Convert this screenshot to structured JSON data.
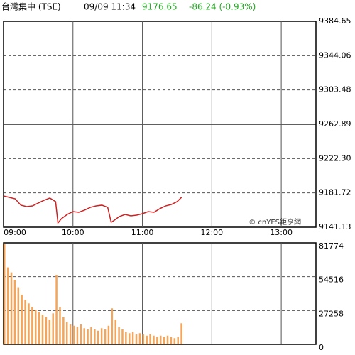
{
  "header": {
    "name": "台灣集中 (TSE)",
    "time": "09/09 11:34",
    "price": "9176.65",
    "change": "-86.24 (-0.93%)"
  },
  "chart_data": [
    {
      "type": "line",
      "watermark": "© cnYES鉅亨網",
      "color": "#cc2222",
      "prev_close": 9262.89,
      "x": [
        "09:00",
        "09:05",
        "09:10",
        "09:15",
        "09:20",
        "09:25",
        "09:30",
        "09:35",
        "09:40",
        "09:45",
        "09:47",
        "09:50",
        "09:55",
        "10:00",
        "10:05",
        "10:10",
        "10:15",
        "10:20",
        "10:25",
        "10:30",
        "10:33",
        "10:35",
        "10:40",
        "10:45",
        "10:50",
        "10:55",
        "11:00",
        "11:05",
        "11:10",
        "11:15",
        "11:20",
        "11:25",
        "11:30",
        "11:34"
      ],
      "values": [
        9178.1,
        9176.4,
        9174.7,
        9167.2,
        9165.5,
        9166.3,
        9169.7,
        9173.0,
        9175.6,
        9171.4,
        9146.2,
        9151.2,
        9156.2,
        9159.6,
        9158.8,
        9161.3,
        9164.6,
        9166.3,
        9167.2,
        9164.6,
        9147.0,
        9148.7,
        9153.7,
        9156.2,
        9154.6,
        9155.4,
        9157.1,
        9159.6,
        9158.8,
        9163.0,
        9166.3,
        9168.0,
        9171.4,
        9176.7
      ],
      "xlim": [
        "09:00",
        "13:30"
      ],
      "xticks": [
        "09:00",
        "10:00",
        "11:00",
        "12:00",
        "13:00"
      ],
      "ylim": [
        9141.13,
        9384.65
      ],
      "yticks": [
        9141.13,
        9181.72,
        {
          "value": 9222.3,
          "label": "9222.30"
        },
        9262.89,
        9303.48,
        9344.06,
        9384.65
      ]
    },
    {
      "type": "bar",
      "color": "#f5a55a",
      "x": [
        "09:00",
        "09:03",
        "09:06",
        "09:09",
        "09:12",
        "09:15",
        "09:18",
        "09:21",
        "09:24",
        "09:27",
        "09:30",
        "09:33",
        "09:36",
        "09:39",
        "09:42",
        "09:45",
        "09:48",
        "09:51",
        "09:54",
        "09:57",
        "10:00",
        "10:03",
        "10:06",
        "10:09",
        "10:12",
        "10:15",
        "10:18",
        "10:21",
        "10:24",
        "10:27",
        "10:30",
        "10:33",
        "10:36",
        "10:39",
        "10:42",
        "10:45",
        "10:48",
        "10:51",
        "10:54",
        "10:57",
        "11:00",
        "11:03",
        "11:06",
        "11:09",
        "11:12",
        "11:15",
        "11:18",
        "11:21",
        "11:24",
        "11:27",
        "11:30",
        "11:33"
      ],
      "values": [
        81000,
        62000,
        58000,
        52000,
        46000,
        40000,
        36000,
        33000,
        30000,
        28000,
        26000,
        24000,
        22000,
        20000,
        25000,
        56000,
        30000,
        22000,
        18000,
        16000,
        15000,
        14000,
        16000,
        13000,
        12000,
        14000,
        12000,
        11000,
        13000,
        12000,
        15000,
        29000,
        20000,
        14000,
        12000,
        10000,
        9000,
        10000,
        8000,
        9000,
        8000,
        7000,
        8000,
        7000,
        6000,
        7000,
        6000,
        7000,
        6000,
        5000,
        6000,
        17000
      ],
      "xlim": [
        "09:00",
        "13:30"
      ],
      "xticks": [
        "09:00",
        "10:00",
        "11:00",
        "12:00",
        "13:00"
      ],
      "ylim": [
        0,
        81774
      ],
      "yticks": [
        0,
        27258,
        54516,
        81774
      ]
    }
  ]
}
